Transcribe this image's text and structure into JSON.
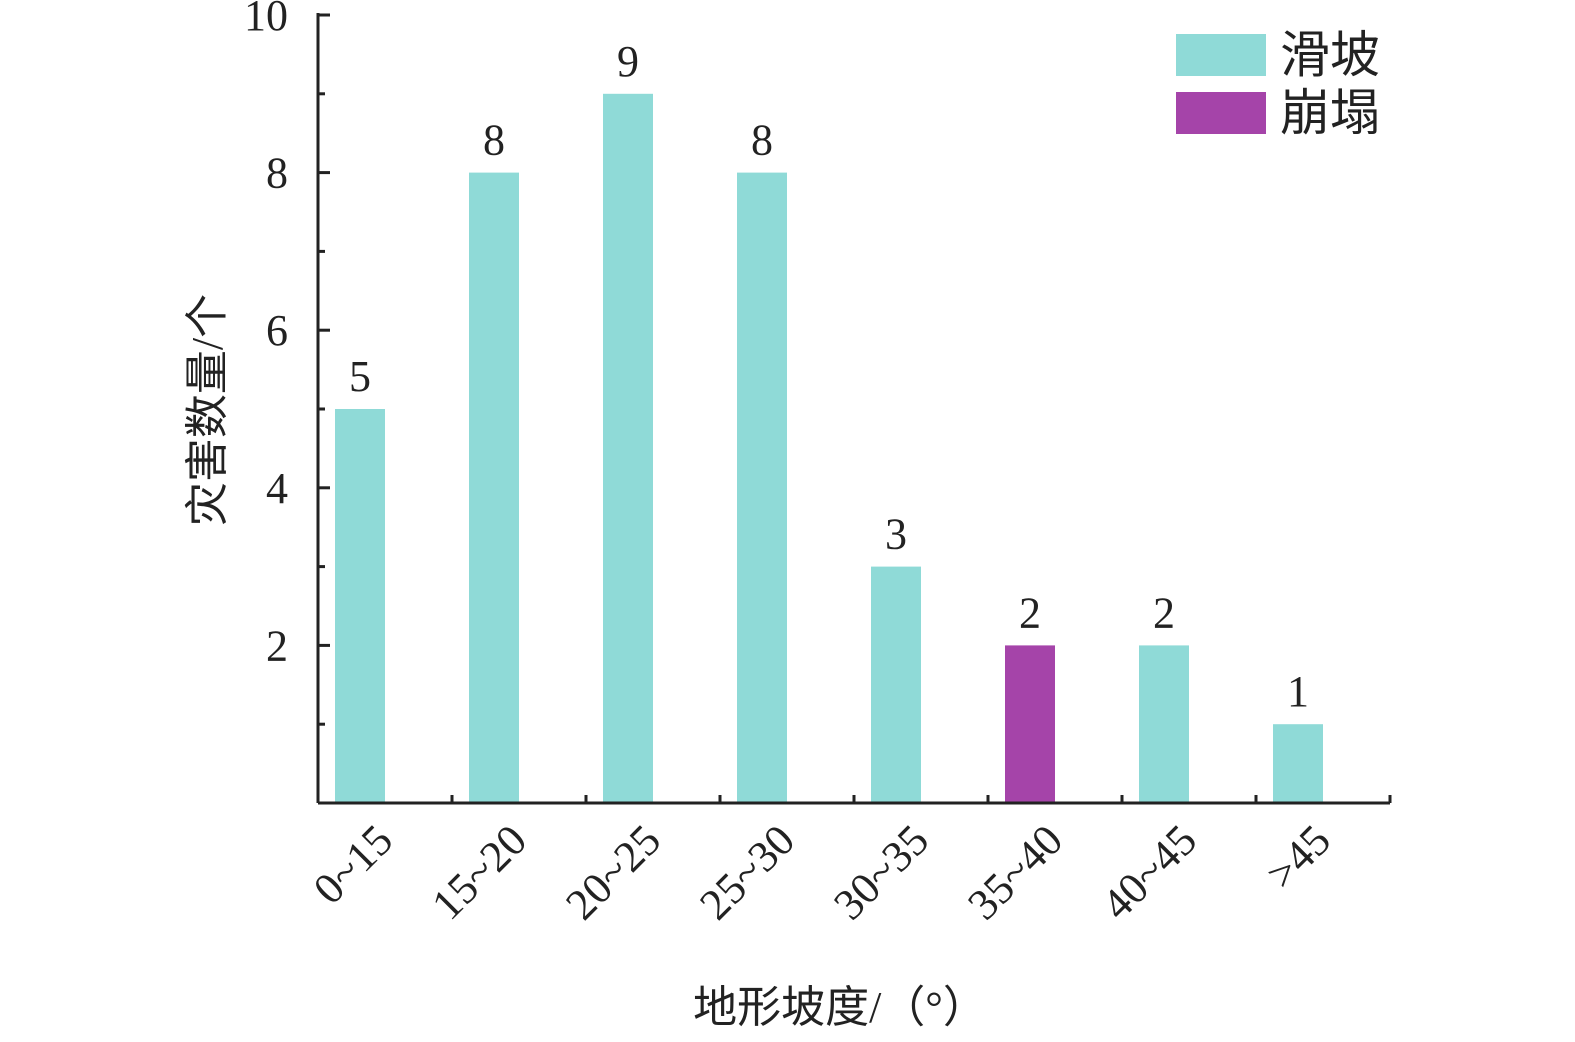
{
  "chart_data": {
    "type": "bar",
    "title": "",
    "xlabel": "地形坡度/（°）",
    "ylabel": "灾害数量/个",
    "ylim": [
      0,
      10
    ],
    "yticks": [
      2,
      4,
      6,
      8,
      10
    ],
    "grid": false,
    "legend_position": "top-right",
    "categories": [
      "0~15",
      "15~20",
      "20~25",
      "25~30",
      "30~35",
      "35~40",
      "40~45",
      ">45"
    ],
    "series": [
      {
        "name": "滑坡",
        "color": "#8fdad7",
        "values": [
          5,
          8,
          9,
          8,
          3,
          null,
          2,
          1
        ]
      },
      {
        "name": "崩塌",
        "color": "#a544a9",
        "values": [
          null,
          null,
          null,
          null,
          null,
          2,
          null,
          null
        ]
      }
    ]
  }
}
